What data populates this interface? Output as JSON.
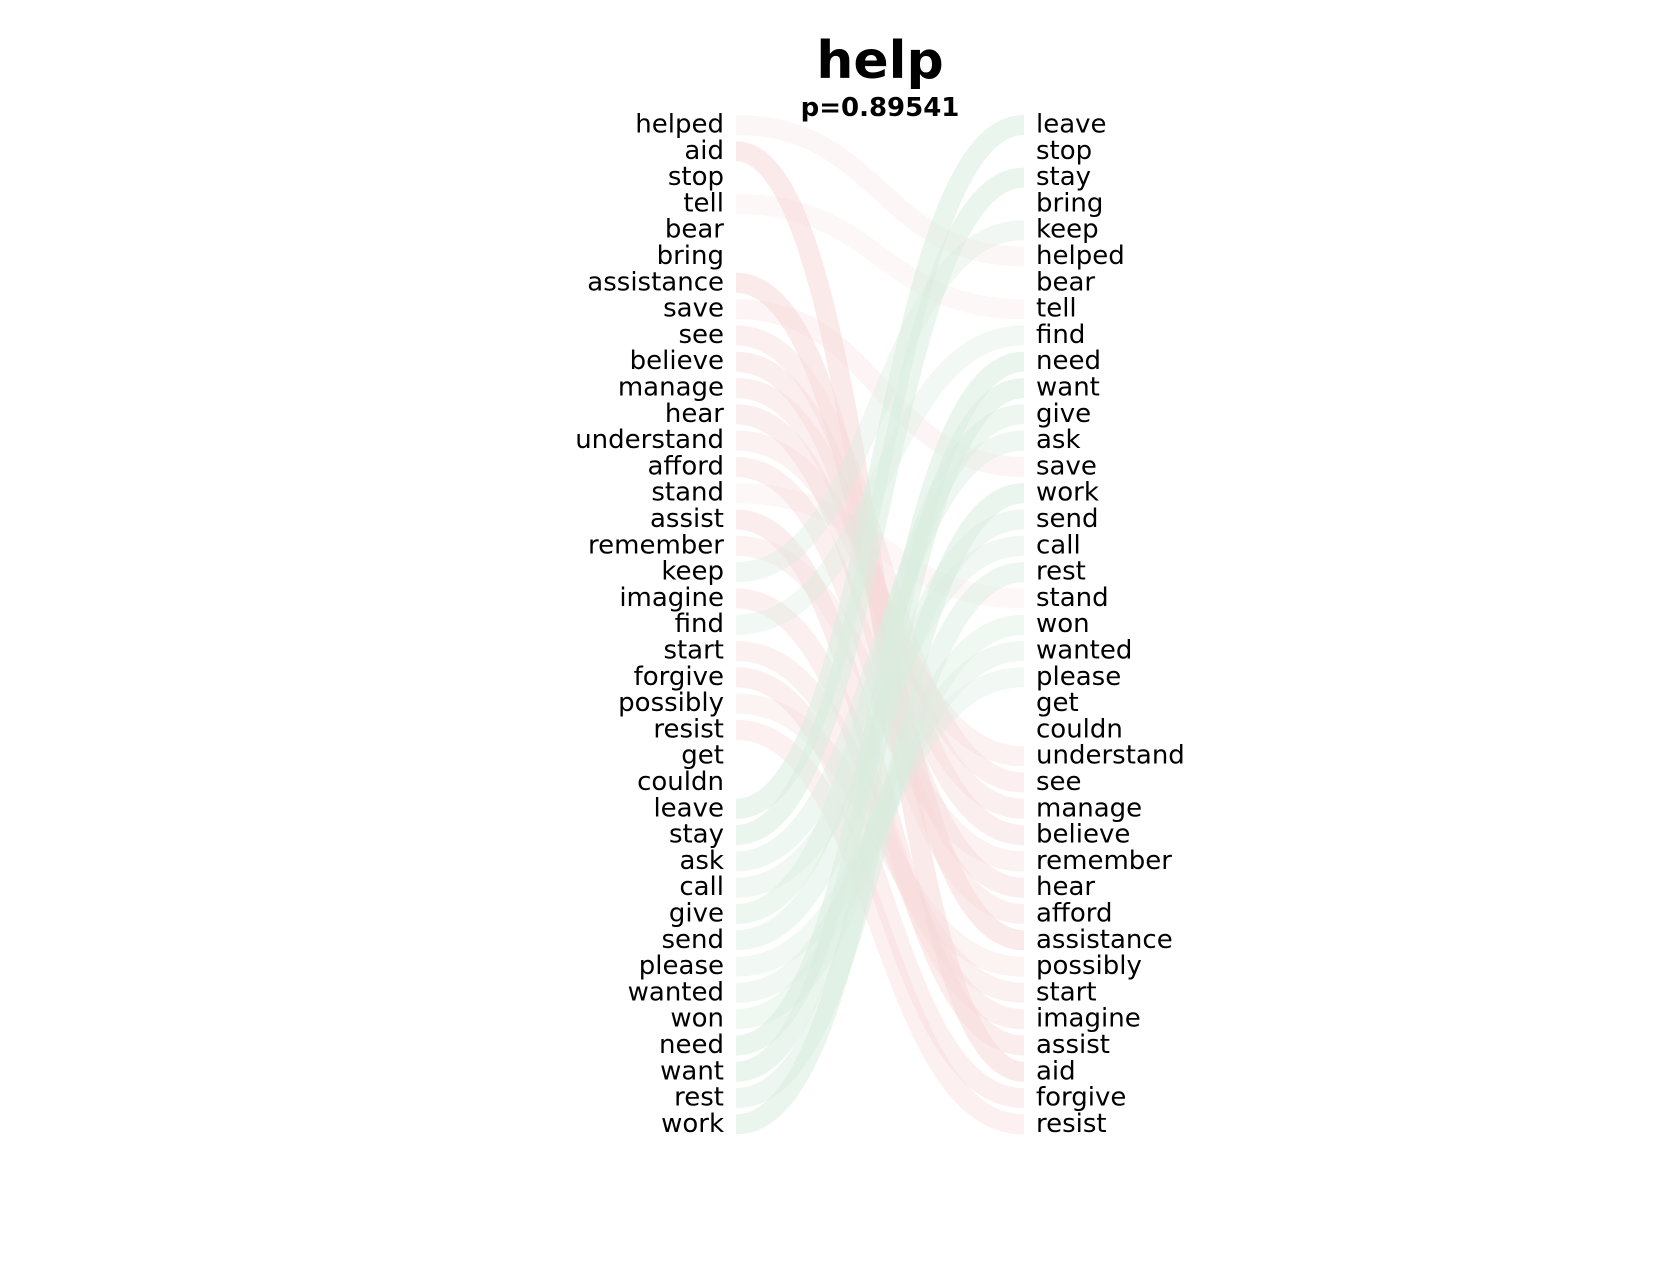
{
  "title": "help",
  "subtitle": "p=0.89541",
  "colors": {
    "left_flow": "#f7d9d9",
    "right_flow": "#d9eddf",
    "mid_flow": "#f3f3e2"
  },
  "left_words": [
    "helped",
    "aid",
    "stop",
    "tell",
    "bear",
    "bring",
    "assistance",
    "save",
    "see",
    "believe",
    "manage",
    "hear",
    "understand",
    "afford",
    "stand",
    "assist",
    "remember",
    "keep",
    "imagine",
    "find",
    "start",
    "forgive",
    "possibly",
    "resist",
    "get",
    "couldn",
    "leave",
    "stay",
    "ask",
    "call",
    "give",
    "send",
    "please",
    "wanted",
    "won",
    "need",
    "want",
    "rest",
    "work"
  ],
  "right_words": [
    "leave",
    "stop",
    "stay",
    "bring",
    "keep",
    "helped",
    "bear",
    "tell",
    "find",
    "need",
    "want",
    "give",
    "ask",
    "save",
    "work",
    "send",
    "call",
    "rest",
    "stand",
    "won",
    "wanted",
    "please",
    "get",
    "couldn",
    "understand",
    "see",
    "manage",
    "believe",
    "remember",
    "hear",
    "afford",
    "assistance",
    "possibly",
    "start",
    "imagine",
    "assist",
    "aid",
    "forgive",
    "resist"
  ]
}
